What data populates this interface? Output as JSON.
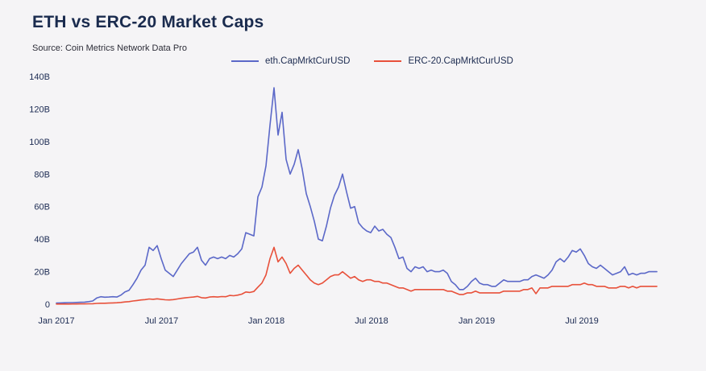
{
  "page": {
    "background": "#f5f4f6"
  },
  "header": {
    "title": "ETH vs ERC-20 Market Caps",
    "source": "Source: Coin Metrics Network Data Pro"
  },
  "chart_data": {
    "type": "line",
    "title": "ETH vs ERC-20 Market Caps",
    "subtitle": "Source: Coin Metrics Network Data Pro",
    "x_unit": "weeks since Jan 2017",
    "x_tick_labels": [
      "Jan 2017",
      "Jul 2017",
      "Jan 2018",
      "Jul 2018",
      "Jan 2019",
      "Jul 2019"
    ],
    "x_tick_weeks": [
      0,
      26.1,
      52.1,
      78.2,
      104.3,
      130.4
    ],
    "y_ticks": [
      0,
      20,
      40,
      60,
      80,
      100,
      120,
      140
    ],
    "y_tick_labels": [
      "0",
      "20B",
      "40B",
      "60B",
      "80B",
      "100B",
      "120B",
      "140B"
    ],
    "ylim": [
      0,
      140
    ],
    "y_unit": "USD billions",
    "grid": false,
    "legend_position": "top",
    "axis_label_color": "#1b2a52",
    "series": [
      {
        "name": "eth.CapMrktCurUSD",
        "color": "#5b68c8",
        "values": [
          0.7,
          0.8,
          0.9,
          1.0,
          1.0,
          1.1,
          1.2,
          1.3,
          1.6,
          2.0,
          3.8,
          4.6,
          4.3,
          4.4,
          4.6,
          4.4,
          5.6,
          7.5,
          8.5,
          12,
          16,
          21,
          24,
          35,
          33,
          36,
          28,
          21,
          19,
          17,
          21,
          25,
          28,
          31,
          32,
          35,
          27,
          24,
          28,
          29,
          28,
          29,
          28,
          30,
          29,
          31,
          34,
          44,
          43,
          42,
          66,
          72,
          85,
          110,
          133,
          104,
          118,
          89,
          80,
          86,
          95,
          83,
          68,
          60,
          51,
          40,
          39,
          48,
          59,
          67,
          72,
          80,
          69,
          59,
          60,
          50,
          47,
          45,
          44,
          48,
          45,
          46,
          43,
          41,
          35,
          28,
          29,
          22,
          20,
          23,
          22,
          23,
          20,
          21,
          20,
          20,
          21,
          19,
          14,
          12,
          9,
          9,
          11,
          14,
          16,
          13,
          12,
          12,
          11,
          11,
          13,
          15,
          14,
          14,
          14,
          14,
          15,
          15,
          17,
          18,
          17,
          16,
          18,
          21,
          26,
          28,
          26,
          29,
          33,
          32,
          34,
          30,
          25,
          23,
          22,
          24,
          22,
          20,
          18,
          19,
          20,
          23,
          18,
          19,
          18,
          19,
          19,
          20,
          20,
          20
        ]
      },
      {
        "name": "ERC-20.CapMrktCurUSD",
        "color": "#e8503a",
        "values": [
          0.1,
          0.1,
          0.1,
          0.1,
          0.15,
          0.15,
          0.2,
          0.2,
          0.25,
          0.3,
          0.5,
          0.6,
          0.6,
          0.7,
          0.8,
          0.9,
          1.1,
          1.4,
          1.6,
          2.0,
          2.3,
          2.6,
          2.8,
          3.2,
          3.0,
          3.3,
          3.0,
          2.7,
          2.6,
          2.8,
          3.2,
          3.6,
          3.9,
          4.2,
          4.4,
          4.8,
          4.0,
          3.8,
          4.4,
          4.6,
          4.4,
          4.7,
          4.6,
          5.4,
          5.2,
          5.6,
          6.2,
          7.5,
          7.2,
          7.8,
          10.5,
          13,
          18,
          28,
          35,
          26,
          29,
          25,
          19,
          22,
          24,
          21,
          18,
          15,
          13,
          12,
          13,
          15,
          17,
          18,
          18,
          20,
          18,
          16,
          17,
          15,
          14,
          15,
          15,
          14,
          14,
          13,
          13,
          12,
          11,
          10,
          10,
          9,
          8,
          9,
          9,
          9,
          9,
          9,
          9,
          9,
          9,
          8,
          8,
          7,
          6,
          6,
          7,
          7,
          8,
          7,
          7,
          7,
          7,
          7,
          7,
          8,
          8,
          8,
          8,
          8,
          9,
          9,
          10,
          6.5,
          10,
          10,
          10,
          11,
          11,
          11,
          11,
          11,
          12,
          12,
          12,
          13,
          12,
          12,
          11,
          11,
          11,
          10,
          10,
          10,
          11,
          11,
          10,
          11,
          10,
          11,
          11,
          11,
          11,
          11
        ]
      }
    ]
  }
}
